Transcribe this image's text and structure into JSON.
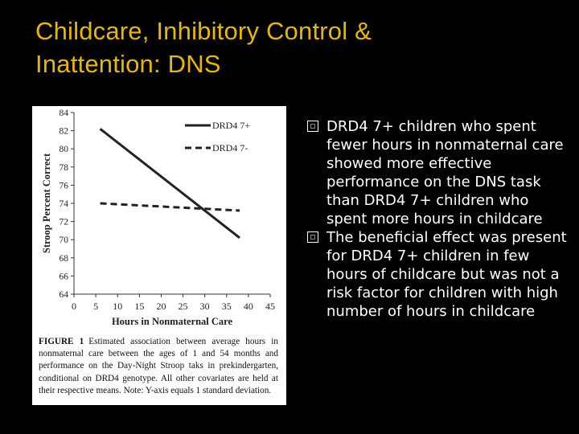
{
  "slide": {
    "title_line1": "Childcare, Inhibitory Control &",
    "title_line2": "Inattention: DNS",
    "title_color": "#e8b800"
  },
  "bullets": [
    "DRD4 7+ children who spent fewer hours in nonmaternal care showed more effective performance on the DNS task than DRD4 7+ children who spent more hours in childcare",
    "The beneficial effect was present for DRD4 7+ children in few hours of childcare but was not a risk factor for children with high number of hours in childcare"
  ],
  "figure": {
    "caption_label": "FIGURE 1",
    "caption_text": "Estimated association between average hours in nonmaternal care between the ages of 1 and 54 months and performance on the Day-Night Stroop taks in prekindergarten, conditional on DRD4 genotype. All other covariates are held at their respective means. Note: Y-axis equals 1 standard deviation."
  },
  "chart_data": {
    "type": "line",
    "xlabel": "Hours in Nonmaternal Care",
    "ylabel": "Stroop Percent Correct",
    "xlim": [
      0,
      45
    ],
    "ylim": [
      64,
      84
    ],
    "x_ticks": [
      0,
      5,
      10,
      15,
      20,
      25,
      30,
      35,
      40,
      45
    ],
    "y_ticks": [
      64,
      66,
      68,
      70,
      72,
      74,
      76,
      78,
      80,
      82,
      84
    ],
    "grid": false,
    "legend_position": "top-right",
    "series": [
      {
        "name": "DRD4 7+",
        "style": "solid",
        "x": [
          6,
          38
        ],
        "y": [
          82.2,
          70.2
        ]
      },
      {
        "name": "DRD4 7-",
        "style": "dashed",
        "x": [
          6,
          38
        ],
        "y": [
          74.0,
          73.2
        ]
      }
    ]
  }
}
